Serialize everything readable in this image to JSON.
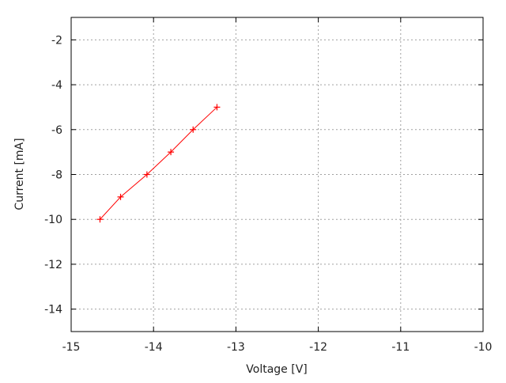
{
  "chart_data": {
    "type": "line",
    "title": "",
    "xlabel": "Voltage [V]",
    "ylabel": "Current [mA]",
    "xlim": [
      -15,
      -10
    ],
    "ylim": [
      -15,
      -1
    ],
    "xticks": [
      -15,
      -14,
      -13,
      -12,
      -11,
      -10
    ],
    "yticks": [
      -14,
      -12,
      -10,
      -8,
      -6,
      -4,
      -2
    ],
    "grid": true,
    "legend": "none",
    "series": [
      {
        "color": "#ff0000",
        "marker": "plus",
        "x": [
          -14.65,
          -14.4,
          -14.08,
          -13.79,
          -13.52,
          -13.23
        ],
        "y": [
          -10,
          -9,
          -8,
          -7,
          -6,
          -5
        ]
      }
    ]
  }
}
